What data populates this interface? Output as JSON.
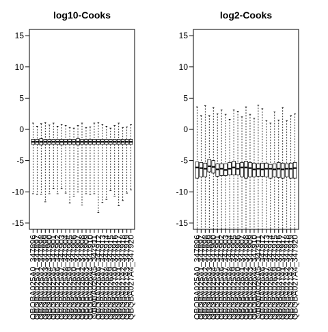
{
  "chart_data": [
    {
      "type": "box",
      "title": "log10-Cooks",
      "ylim": [
        -16,
        16
      ],
      "yticks": [
        -15,
        -10,
        -5,
        0,
        5,
        10,
        15
      ],
      "grid": false,
      "categories": [
        "QBQBA025A0_347896",
        "QBQBA025A1_347897",
        "QBQBA025A2_347898",
        "QBQBA025A3_347899",
        "QBQBA025A4_347900",
        "QBQBA025A5_347901",
        "QBQBA025A6_347902",
        "QBQBA025A7_347903",
        "QBQBA025A8_347904",
        "QBQBA025A9_347905",
        "QBQBA026A0_347906",
        "QBQBA026A1_347907",
        "QBQBA026A2_347908",
        "QBQBA026A3_347909",
        "QBQBA026A4_347910",
        "QBQBA026A5_347911",
        "QBQBA026A6_347912",
        "QBQBA026A7_347913",
        "QBQBA026A8_347914",
        "QBQBA026A9_347915",
        "QBQBA027A0_347916",
        "QBQBA027A1_347917",
        "QBQBA027A2_347918",
        "QBQBA027A3_347919",
        "QBQBA027A4_347920"
      ],
      "boxes": [
        {
          "wlo": -10.3,
          "q1": -2.4,
          "med": -2.0,
          "q3": -1.6,
          "whi": 1.0
        },
        {
          "wlo": -10.4,
          "q1": -2.4,
          "med": -2.0,
          "q3": -1.6,
          "whi": 0.5
        },
        {
          "wlo": -10.4,
          "q1": -2.5,
          "med": -2.0,
          "q3": -1.5,
          "whi": 0.9
        },
        {
          "wlo": -11.6,
          "q1": -2.4,
          "med": -2.0,
          "q3": -1.6,
          "whi": 1.1
        },
        {
          "wlo": -10.3,
          "q1": -2.4,
          "med": -2.0,
          "q3": -1.6,
          "whi": 0.7
        },
        {
          "wlo": -9.5,
          "q1": -2.4,
          "med": -2.0,
          "q3": -1.6,
          "whi": 1.0
        },
        {
          "wlo": -10.3,
          "q1": -2.4,
          "med": -2.0,
          "q3": -1.6,
          "whi": 0.5
        },
        {
          "wlo": -9.5,
          "q1": -2.5,
          "med": -2.0,
          "q3": -1.6,
          "whi": 0.8
        },
        {
          "wlo": -10.2,
          "q1": -2.4,
          "med": -2.0,
          "q3": -1.6,
          "whi": 0.6
        },
        {
          "wlo": -11.8,
          "q1": -2.4,
          "med": -2.0,
          "q3": -1.6,
          "whi": 0.3
        },
        {
          "wlo": -10.7,
          "q1": -2.4,
          "med": -2.0,
          "q3": -1.6,
          "whi": 0.2
        },
        {
          "wlo": -10.0,
          "q1": -2.5,
          "med": -2.0,
          "q3": -1.5,
          "whi": 0.6
        },
        {
          "wlo": -12.1,
          "q1": -2.4,
          "med": -2.0,
          "q3": -1.6,
          "whi": 1.0
        },
        {
          "wlo": -10.3,
          "q1": -2.4,
          "med": -2.0,
          "q3": -1.6,
          "whi": 0.3
        },
        {
          "wlo": -10.4,
          "q1": -2.4,
          "med": -2.0,
          "q3": -1.6,
          "whi": 0.4
        },
        {
          "wlo": -10.3,
          "q1": -2.4,
          "med": -2.0,
          "q3": -1.6,
          "whi": 1.0
        },
        {
          "wlo": -13.3,
          "q1": -2.4,
          "med": -2.0,
          "q3": -1.6,
          "whi": 1.1
        },
        {
          "wlo": -11.7,
          "q1": -2.4,
          "med": -2.0,
          "q3": -1.6,
          "whi": 0.8
        },
        {
          "wlo": -11.2,
          "q1": -2.4,
          "med": -2.0,
          "q3": -1.6,
          "whi": 0.5
        },
        {
          "wlo": -9.8,
          "q1": -2.4,
          "med": -2.0,
          "q3": -1.6,
          "whi": 0.2
        },
        {
          "wlo": -10.7,
          "q1": -2.4,
          "med": -2.0,
          "q3": -1.6,
          "whi": 0.6
        },
        {
          "wlo": -12.2,
          "q1": -2.4,
          "med": -2.0,
          "q3": -1.6,
          "whi": 1.0
        },
        {
          "wlo": -11.4,
          "q1": -2.4,
          "med": -2.0,
          "q3": -1.6,
          "whi": 0.3
        },
        {
          "wlo": -10.2,
          "q1": -2.4,
          "med": -2.0,
          "q3": -1.6,
          "whi": 0.4
        },
        {
          "wlo": -9.7,
          "q1": -2.4,
          "med": -2.0,
          "q3": -1.6,
          "whi": 0.8
        }
      ]
    },
    {
      "type": "box",
      "title": "log2-Cooks",
      "ylim": [
        -16,
        16
      ],
      "yticks": [
        -15,
        -10,
        -5,
        0,
        5,
        10,
        15
      ],
      "grid": false,
      "categories": [
        "QBQBA025A0_347896",
        "QBQBA025A1_347897",
        "QBQBA025A2_347898",
        "QBQBA025A3_347899",
        "QBQBA025A4_347900",
        "QBQBA025A5_347901",
        "QBQBA025A6_347902",
        "QBQBA025A7_347903",
        "QBQBA025A8_347904",
        "QBQBA025A9_347905",
        "QBQBA026A0_347906",
        "QBQBA026A1_347907",
        "QBQBA026A2_347908",
        "QBQBA026A3_347909",
        "QBQBA026A4_347910",
        "QBQBA026A5_347911",
        "QBQBA026A6_347912",
        "QBQBA026A7_347913",
        "QBQBA026A8_347914",
        "QBQBA026A9_347915",
        "QBQBA027A0_347916",
        "QBQBA027A1_347917",
        "QBQBA027A2_347918",
        "QBQBA027A3_347919",
        "QBQBA027A4_347920"
      ],
      "boxes": [
        {
          "wlo": -16,
          "q1": -7.8,
          "med": -6.1,
          "q3": -5.2,
          "whi": 3.6
        },
        {
          "wlo": -16,
          "q1": -7.6,
          "med": -6.2,
          "q3": -5.3,
          "whi": 2.2
        },
        {
          "wlo": -16,
          "q1": -7.6,
          "med": -6.3,
          "q3": -5.4,
          "whi": 3.8
        },
        {
          "wlo": -16,
          "q1": -6.8,
          "med": -5.9,
          "q3": -4.8,
          "whi": 2.2
        },
        {
          "wlo": -16,
          "q1": -7.0,
          "med": -6.0,
          "q3": -5.0,
          "whi": 3.5
        },
        {
          "wlo": -16,
          "q1": -7.5,
          "med": -6.4,
          "q3": -5.5,
          "whi": 2.5
        },
        {
          "wlo": -16,
          "q1": -7.4,
          "med": -6.3,
          "q3": -5.5,
          "whi": 3.1
        },
        {
          "wlo": -16,
          "q1": -7.4,
          "med": -6.5,
          "q3": -5.5,
          "whi": 2.4
        },
        {
          "wlo": -16,
          "q1": -7.3,
          "med": -6.3,
          "q3": -5.3,
          "whi": 1.6
        },
        {
          "wlo": -16,
          "q1": -7.3,
          "med": -6.1,
          "q3": -5.1,
          "whi": 3.1
        },
        {
          "wlo": -16,
          "q1": -7.3,
          "med": -6.3,
          "q3": -5.4,
          "whi": 2.9
        },
        {
          "wlo": -16,
          "q1": -7.6,
          "med": -6.1,
          "q3": -5.3,
          "whi": 2.0
        },
        {
          "wlo": -16,
          "q1": -7.8,
          "med": -6.1,
          "q3": -5.1,
          "whi": 3.6
        },
        {
          "wlo": -16,
          "q1": -7.6,
          "med": -6.2,
          "q3": -5.3,
          "whi": 2.4
        },
        {
          "wlo": -16,
          "q1": -7.6,
          "med": -6.4,
          "q3": -5.4,
          "whi": 1.8
        },
        {
          "wlo": -16,
          "q1": -7.5,
          "med": -6.3,
          "q3": -5.5,
          "whi": 3.9
        },
        {
          "wlo": -16,
          "q1": -7.5,
          "med": -6.4,
          "q3": -5.4,
          "whi": 3.3
        },
        {
          "wlo": -16,
          "q1": -7.6,
          "med": -6.3,
          "q3": -5.4,
          "whi": 1.4
        },
        {
          "wlo": -16,
          "q1": -7.8,
          "med": -6.3,
          "q3": -5.6,
          "whi": 1.0
        },
        {
          "wlo": -16,
          "q1": -7.6,
          "med": -6.4,
          "q3": -5.5,
          "whi": 2.8
        },
        {
          "wlo": -16,
          "q1": -7.7,
          "med": -6.3,
          "q3": -5.3,
          "whi": 1.5
        },
        {
          "wlo": -16,
          "q1": -7.8,
          "med": -6.4,
          "q3": -5.4,
          "whi": 3.5
        },
        {
          "wlo": -16,
          "q1": -7.6,
          "med": -6.3,
          "q3": -5.5,
          "whi": 1.4
        },
        {
          "wlo": -16,
          "q1": -7.8,
          "med": -6.3,
          "q3": -5.4,
          "whi": 2.2
        },
        {
          "wlo": -16,
          "q1": -7.8,
          "med": -6.2,
          "q3": -5.3,
          "whi": 2.5
        }
      ]
    }
  ]
}
